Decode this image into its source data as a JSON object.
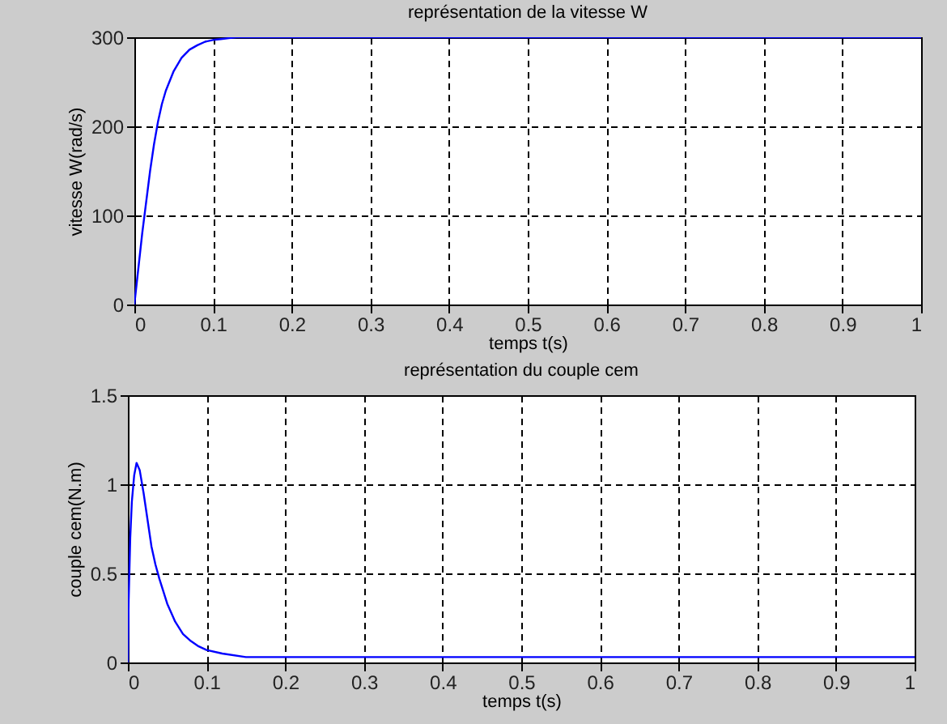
{
  "chart_data": [
    {
      "type": "line",
      "title": "représentation de la vitesse W",
      "xlabel": "temps t(s)",
      "ylabel": "vitesse W(rad/s)",
      "x": [
        0,
        0.005,
        0.01,
        0.015,
        0.02,
        0.025,
        0.03,
        0.035,
        0.04,
        0.05,
        0.06,
        0.07,
        0.08,
        0.09,
        0.1,
        0.11,
        0.12,
        0.13,
        0.15,
        0.2,
        0.3,
        0.5,
        0.7,
        1
      ],
      "series": [
        {
          "color": "#0000ff",
          "values": [
            0,
            40,
            80,
            115,
            150,
            180,
            205,
            225,
            240,
            262,
            277,
            286,
            291,
            295,
            297,
            298,
            299,
            300,
            300,
            300,
            300,
            300,
            300,
            300
          ]
        }
      ],
      "xlim": [
        0,
        1
      ],
      "ylim": [
        0,
        300
      ],
      "xticks": [
        0,
        0.1,
        0.2,
        0.3,
        0.4,
        0.5,
        0.6,
        0.7,
        0.8,
        0.9,
        1
      ],
      "yticks": [
        0,
        100,
        200,
        300
      ],
      "grid": true,
      "line_style": "solid"
    },
    {
      "type": "line",
      "title": "représentation du couple cem",
      "xlabel": "temps t(s)",
      "ylabel": "couple cem(N.m)",
      "x": [
        0,
        0.001,
        0.003,
        0.005,
        0.008,
        0.011,
        0.015,
        0.02,
        0.025,
        0.03,
        0.035,
        0.04,
        0.05,
        0.06,
        0.07,
        0.08,
        0.09,
        0.1,
        0.12,
        0.15,
        0.2,
        0.3,
        0.5,
        0.7,
        1
      ],
      "series": [
        {
          "color": "#0000ff",
          "values": [
            0,
            0.35,
            0.7,
            0.9,
            1.05,
            1.12,
            1.08,
            0.95,
            0.8,
            0.65,
            0.55,
            0.47,
            0.33,
            0.23,
            0.16,
            0.12,
            0.09,
            0.07,
            0.05,
            0.03,
            0.03,
            0.03,
            0.03,
            0.03,
            0.03
          ]
        }
      ],
      "xlim": [
        0,
        1
      ],
      "ylim": [
        0,
        1.5
      ],
      "xticks": [
        0,
        0.1,
        0.2,
        0.3,
        0.4,
        0.5,
        0.6,
        0.7,
        0.8,
        0.9,
        1
      ],
      "yticks": [
        0,
        0.5,
        1,
        1.5
      ],
      "grid": true,
      "line_style": "solid"
    }
  ]
}
